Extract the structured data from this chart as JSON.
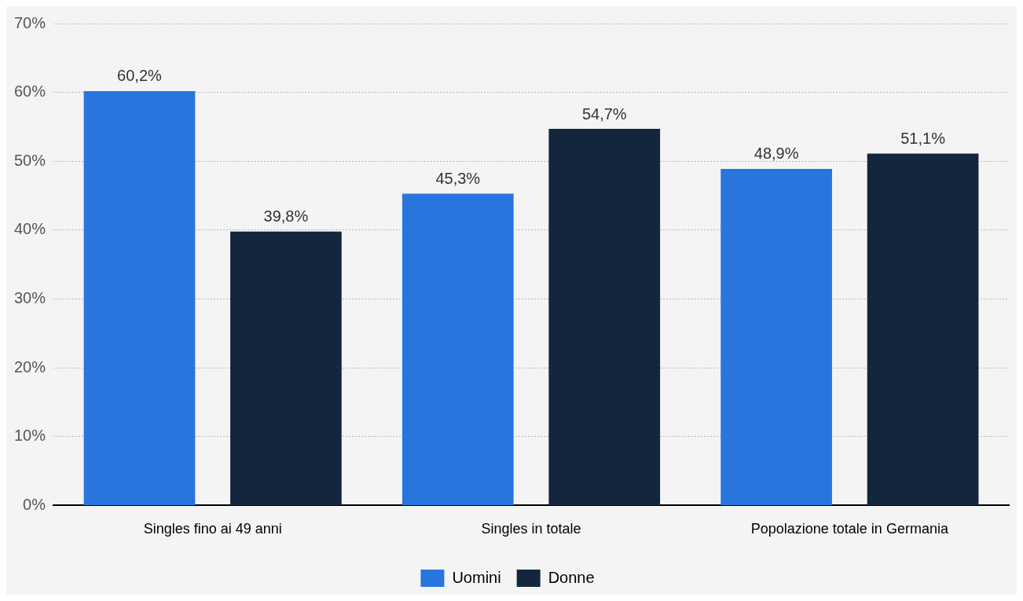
{
  "chart_data": {
    "type": "bar",
    "categories": [
      "Singles fino ai 49 anni",
      "Singles in totale",
      "Popolazione totale in Germania"
    ],
    "series": [
      {
        "name": "Uomini",
        "color": "#2876dd",
        "values": [
          60.2,
          45.3,
          48.9
        ],
        "value_labels": [
          "60,2%",
          "45,3%",
          "48,9%"
        ]
      },
      {
        "name": "Donne",
        "color": "#13263d",
        "values": [
          39.8,
          54.7,
          51.1
        ],
        "value_labels": [
          "39,8%",
          "54,7%",
          "51,1%"
        ]
      }
    ],
    "ylim": [
      0,
      70
    ],
    "yticks": [
      {
        "value": 0,
        "label": "0%"
      },
      {
        "value": 10,
        "label": "10%"
      },
      {
        "value": 20,
        "label": "20%"
      },
      {
        "value": 30,
        "label": "30%"
      },
      {
        "value": 40,
        "label": "40%"
      },
      {
        "value": 50,
        "label": "50%"
      },
      {
        "value": 60,
        "label": "60%"
      },
      {
        "value": 70,
        "label": "70%"
      }
    ],
    "grid": "y",
    "legend": "bottom"
  }
}
